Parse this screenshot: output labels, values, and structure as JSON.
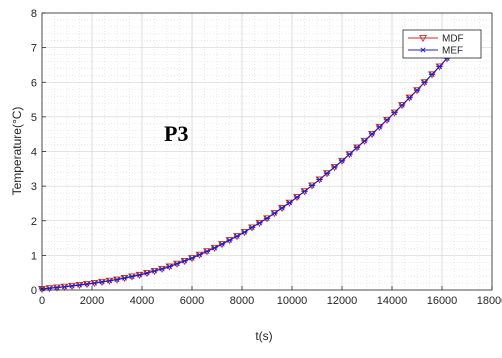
{
  "chart_data": {
    "type": "line",
    "title": "",
    "annotation": "P3",
    "xlabel": "t(s)",
    "ylabel": "Temperature(°C)",
    "xlim": [
      0,
      18000
    ],
    "ylim": [
      0,
      8
    ],
    "xticks": [
      0,
      2000,
      4000,
      6000,
      8000,
      10000,
      12000,
      14000,
      16000,
      18000
    ],
    "yticks": [
      0,
      1,
      2,
      3,
      4,
      5,
      6,
      7,
      8
    ],
    "grid": true,
    "minor_grid": true,
    "legend_position": "top-right",
    "x": [
      0,
      1000,
      2000,
      3000,
      4000,
      5000,
      6000,
      7000,
      8000,
      9000,
      10000,
      11000,
      12000,
      13000,
      14000,
      15000,
      16000,
      16300
    ],
    "series": [
      {
        "name": "MDF",
        "color": "#d62728",
        "marker": "triangle-down",
        "values": [
          0.03,
          0.1,
          0.19,
          0.3,
          0.45,
          0.65,
          0.92,
          1.25,
          1.63,
          2.07,
          2.57,
          3.13,
          3.73,
          4.37,
          5.05,
          5.77,
          6.53,
          6.77
        ]
      },
      {
        "name": "MEF",
        "color": "#1f1fbf",
        "marker": "asterisk",
        "values": [
          0.03,
          0.1,
          0.19,
          0.3,
          0.45,
          0.65,
          0.92,
          1.25,
          1.63,
          2.07,
          2.57,
          3.13,
          3.73,
          4.37,
          5.05,
          5.77,
          6.53,
          6.77
        ]
      }
    ]
  }
}
